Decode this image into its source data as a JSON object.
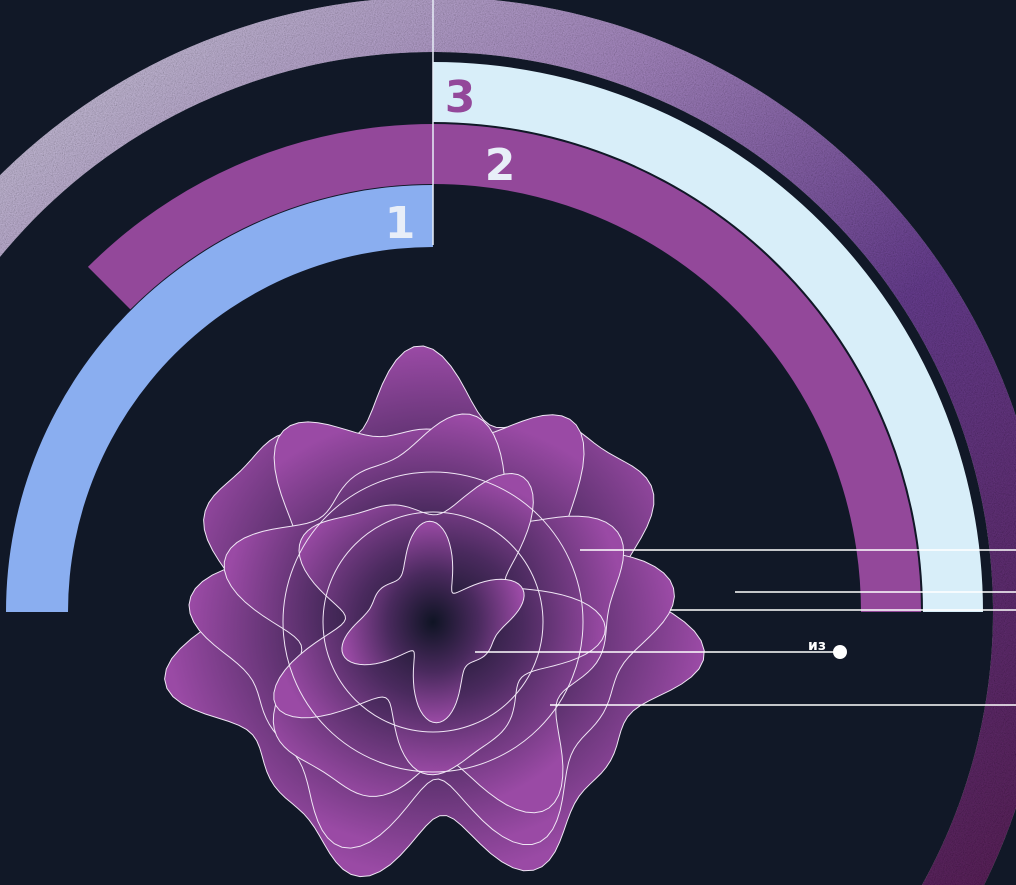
{
  "rings": [
    {
      "label": "1"
    },
    {
      "label": "2"
    },
    {
      "label": "3"
    }
  ],
  "callout": {
    "label": "из"
  }
}
